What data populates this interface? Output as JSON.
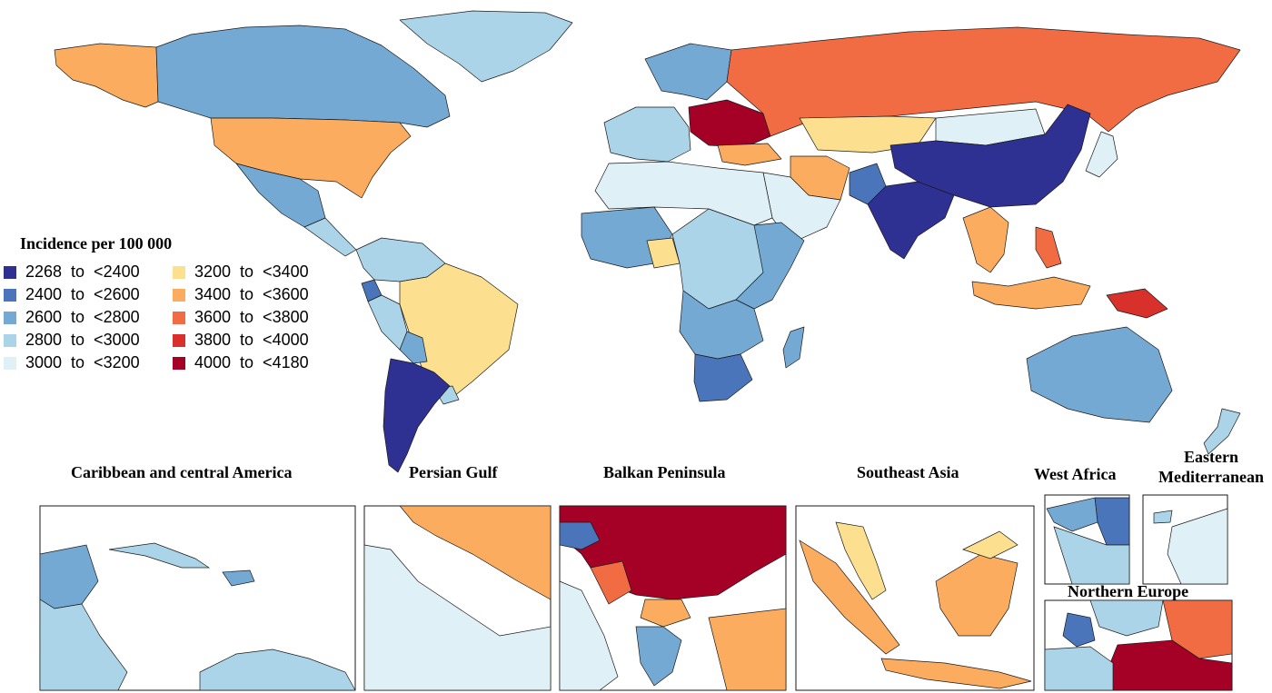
{
  "legend": {
    "title": "Incidence per 100 000",
    "items": [
      {
        "label": "2268  to  <2400",
        "color": "#2e3192"
      },
      {
        "label": "2400  to  <2600",
        "color": "#4a75bb"
      },
      {
        "label": "2600  to  <2800",
        "color": "#74a9d4"
      },
      {
        "label": "2800  to  <3000",
        "color": "#abd4e8"
      },
      {
        "label": "3000  to  <3200",
        "color": "#e0f0f7"
      },
      {
        "label": "3200  to  <3400",
        "color": "#fde08f"
      },
      {
        "label": "3400  to  <3600",
        "color": "#fbac5e"
      },
      {
        "label": "3600  to  <3800",
        "color": "#f26c43"
      },
      {
        "label": "3800  to  <4000",
        "color": "#d8302a"
      },
      {
        "label": "4000  to  <4180",
        "color": "#a50026"
      }
    ]
  },
  "insets": {
    "caribbean": "Caribbean and central America",
    "persian_gulf": "Persian Gulf",
    "balkan": "Balkan Peninsula",
    "southeast_asia": "Southeast Asia",
    "west_africa": "West Africa",
    "eastern_med": "Eastern Mediterranean",
    "northern_europe": "Northern Europe"
  },
  "region_colors": {
    "canada": "#74a9d4",
    "usa": "#fbac5e",
    "alaska": "#fbac5e",
    "greenland": "#abd4e8",
    "mexico": "#74a9d4",
    "central_america": "#abd4e8",
    "colombia_venezuela": "#abd4e8",
    "brazil": "#fde08f",
    "peru": "#abd4e8",
    "ecuador": "#4a75bb",
    "bolivia": "#74a9d4",
    "argentina_chile": "#2e3192",
    "uruguay": "#abd4e8",
    "russia": "#f26c43",
    "china": "#2e3192",
    "india": "#2e3192",
    "kazakhstan": "#fde08f",
    "mongolia": "#e0f0f7",
    "iran": "#fbac5e",
    "turkey": "#fbac5e",
    "ukraine_belarus": "#a50026",
    "western_europe": "#abd4e8",
    "scandinavia": "#74a9d4",
    "north_africa": "#e0f0f7",
    "sahel": "#74a9d4",
    "nigeria": "#fde08f",
    "central_africa": "#abd4e8",
    "east_africa": "#74a9d4",
    "southern_africa": "#74a9d4",
    "south_africa": "#4a75bb",
    "madagascar": "#74a9d4",
    "arabia": "#e0f0f7",
    "southeast_asia": "#fbac5e",
    "philippines": "#f26c43",
    "indonesia": "#fbac5e",
    "papua": "#d8302a",
    "australia": "#74a9d4",
    "new_zealand": "#abd4e8",
    "japan": "#e0f0f7",
    "pakistan": "#4a75bb"
  }
}
